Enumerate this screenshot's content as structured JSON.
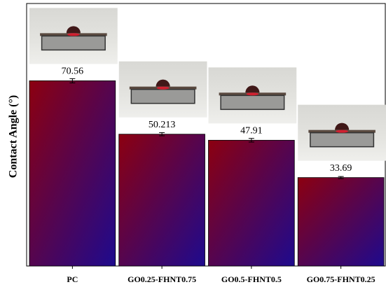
{
  "chart_data": {
    "type": "bar",
    "y_label": "Contact Angle (°)",
    "categories": [
      "PC",
      "GO0.25-FHNT0.75",
      "GO0.5-FHNT0.5",
      "GO0.75-FHNT0.25"
    ],
    "values": [
      70.56,
      50.213,
      47.91,
      33.69
    ],
    "errors": [
      0.8,
      0.6,
      0.7,
      0.4
    ],
    "colors": [
      "#8c0010",
      "#1e0a8e"
    ],
    "ylim": [
      0,
      100
    ]
  }
}
